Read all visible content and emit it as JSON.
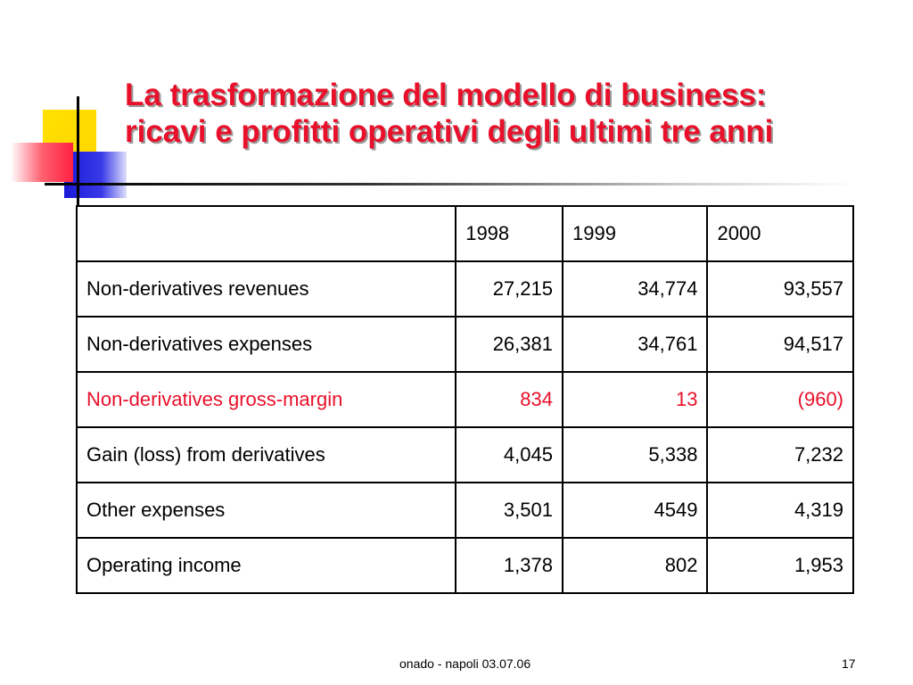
{
  "slide": {
    "title_line1": "La trasformazione del modello di business:",
    "title_line2": "ricavi e profitti operativi degli ultimi tre anni",
    "accent_color": "#e8102a"
  },
  "table": {
    "headers": [
      "",
      "1998",
      "1999",
      "2000"
    ],
    "rows": [
      {
        "label": "Non-derivatives revenues",
        "values": [
          "27,215",
          "34,774",
          "93,557"
        ],
        "highlight": false
      },
      {
        "label": "Non-derivatives expenses",
        "values": [
          "26,381",
          "34,761",
          "94,517"
        ],
        "highlight": false
      },
      {
        "label": "Non-derivatives gross-margin",
        "values": [
          "834",
          "13",
          "(960)"
        ],
        "highlight": true
      },
      {
        "label": "Gain (loss) from derivatives",
        "values": [
          "4,045",
          "5,338",
          "7,232"
        ],
        "highlight": false
      },
      {
        "label": "Other expenses",
        "values": [
          "3,501",
          "4549",
          "4,319"
        ],
        "highlight": false
      },
      {
        "label": "Operating income",
        "values": [
          "1,378",
          "802",
          "1,953"
        ],
        "highlight": false
      }
    ]
  },
  "footer": {
    "text": "onado - napoli 03.07.06",
    "page_number": "17"
  }
}
